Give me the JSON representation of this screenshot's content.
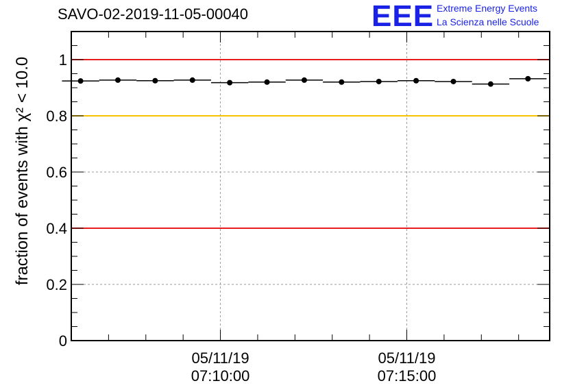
{
  "title": "SAVO-02-2019-11-05-00040",
  "logo": {
    "mark": "EEE",
    "line1": "Extreme Energy Events",
    "line2": "La Scienza nelle Scuole",
    "color": "#1a22e6"
  },
  "chart_data": {
    "type": "scatter",
    "title": "SAVO-02-2019-11-05-00040",
    "ylabel": "fraction of events with χ² < 10.0",
    "ylim": [
      0,
      1.1
    ],
    "yticks": [
      0,
      0.2,
      0.4,
      0.6,
      0.8,
      1
    ],
    "ytick_labels": [
      "0",
      "0.2",
      "0.4",
      "0.6",
      "0.8",
      "1"
    ],
    "xlim": [
      "07:06:00",
      "07:18:50"
    ],
    "xticks": [
      "07:10:00",
      "07:15:00"
    ],
    "xtick_labels": [
      {
        "date": "05/11/19",
        "time": "07:10:00"
      },
      {
        "date": "05/11/19",
        "time": "07:15:00"
      }
    ],
    "grid": true,
    "reference_lines": [
      {
        "y": 1.0,
        "color": "#e61b1b"
      },
      {
        "y": 0.8,
        "color": "#f5c200"
      },
      {
        "y": 0.4,
        "color": "#e61b1b"
      }
    ],
    "series": [
      {
        "x": [
          "07:06:15",
          "07:07:15",
          "07:08:15",
          "07:09:15",
          "07:10:15",
          "07:11:15",
          "07:12:15",
          "07:13:15",
          "07:14:15",
          "07:15:15",
          "07:16:15",
          "07:17:15",
          "07:18:15"
        ],
        "values": [
          0.924,
          0.927,
          0.925,
          0.927,
          0.918,
          0.92,
          0.927,
          0.92,
          0.922,
          0.925,
          0.922,
          0.913,
          0.932
        ],
        "color": "#000000"
      }
    ]
  }
}
